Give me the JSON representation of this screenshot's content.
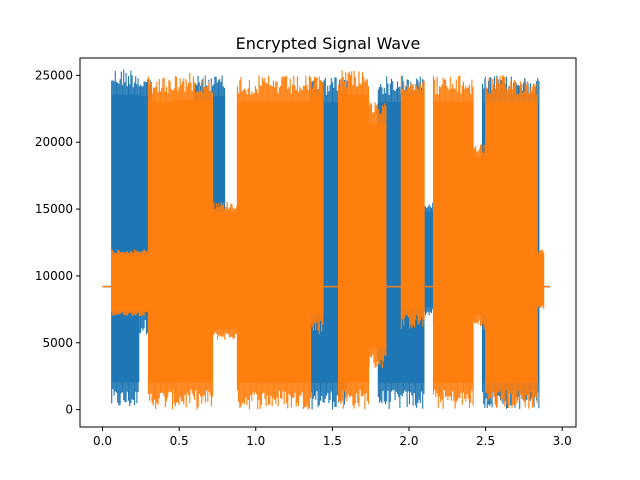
{
  "chart_data": {
    "type": "line",
    "title": "Encrypted Signal Wave",
    "xlabel": "",
    "ylabel": "",
    "xlim": [
      -0.147,
      3.09
    ],
    "ylim": [
      -1300,
      26300
    ],
    "x_ticks": [
      0.0,
      0.5,
      1.0,
      1.5,
      2.0,
      2.5,
      3.0
    ],
    "x_tick_labels": [
      "0.0",
      "0.5",
      "1.0",
      "1.5",
      "2.0",
      "2.5",
      "3.0"
    ],
    "y_ticks": [
      0,
      5000,
      10000,
      15000,
      20000,
      25000
    ],
    "y_tick_labels": [
      "0",
      "5000",
      "10000",
      "15000",
      "20000",
      "25000"
    ],
    "grid": false,
    "colors": {
      "series1": "#1f77b4",
      "series2": "#ff7f0e"
    },
    "series": [
      {
        "color": "#1f77b4",
        "baseline": 9200,
        "x_extent": [
          0.0,
          2.92
        ],
        "bursts": [
          {
            "x": [
              0.06,
              0.24
            ],
            "low": 0,
            "high": 25600
          },
          {
            "x": [
              0.24,
              0.32
            ],
            "low": 5600,
            "high": 25000
          },
          {
            "x": [
              0.6,
              0.8
            ],
            "low": 5600,
            "high": 25000
          },
          {
            "x": [
              1.36,
              1.6
            ],
            "low": 0,
            "high": 25000
          },
          {
            "x": [
              1.6,
              1.66
            ],
            "low": 3000,
            "high": 23000
          },
          {
            "x": [
              1.8,
              2.1
            ],
            "low": 0,
            "high": 25000
          },
          {
            "x": [
              2.1,
              2.16
            ],
            "low": 7000,
            "high": 15500
          },
          {
            "x": [
              2.16,
              2.4
            ],
            "low": 6000,
            "high": 15000
          },
          {
            "x": [
              2.48,
              2.85
            ],
            "low": 0,
            "high": 25000
          }
        ]
      },
      {
        "color": "#ff7f0e",
        "baseline": 9200,
        "x_extent": [
          0.0,
          2.92
        ],
        "bursts": [
          {
            "x": [
              0.06,
              0.3
            ],
            "low": 7000,
            "high": 12000
          },
          {
            "x": [
              0.3,
              0.46
            ],
            "low": 0,
            "high": 25000
          },
          {
            "x": [
              0.46,
              0.72
            ],
            "low": 0,
            "high": 25200
          },
          {
            "x": [
              0.72,
              0.88
            ],
            "low": 5200,
            "high": 15600
          },
          {
            "x": [
              0.88,
              1.36
            ],
            "low": 0,
            "high": 25000
          },
          {
            "x": [
              1.36,
              1.44
            ],
            "low": 5600,
            "high": 25000
          },
          {
            "x": [
              1.54,
              1.74
            ],
            "low": 0,
            "high": 25600
          },
          {
            "x": [
              1.74,
              1.85
            ],
            "low": 3000,
            "high": 23000
          },
          {
            "x": [
              1.95,
              2.1
            ],
            "low": 6000,
            "high": 25000
          },
          {
            "x": [
              2.16,
              2.42
            ],
            "low": 0,
            "high": 25000
          },
          {
            "x": [
              2.42,
              2.5
            ],
            "low": 6000,
            "high": 20000
          },
          {
            "x": [
              2.5,
              2.84
            ],
            "low": 0,
            "high": 25000
          },
          {
            "x": [
              2.84,
              2.88
            ],
            "low": 7500,
            "high": 12000
          }
        ]
      }
    ]
  }
}
